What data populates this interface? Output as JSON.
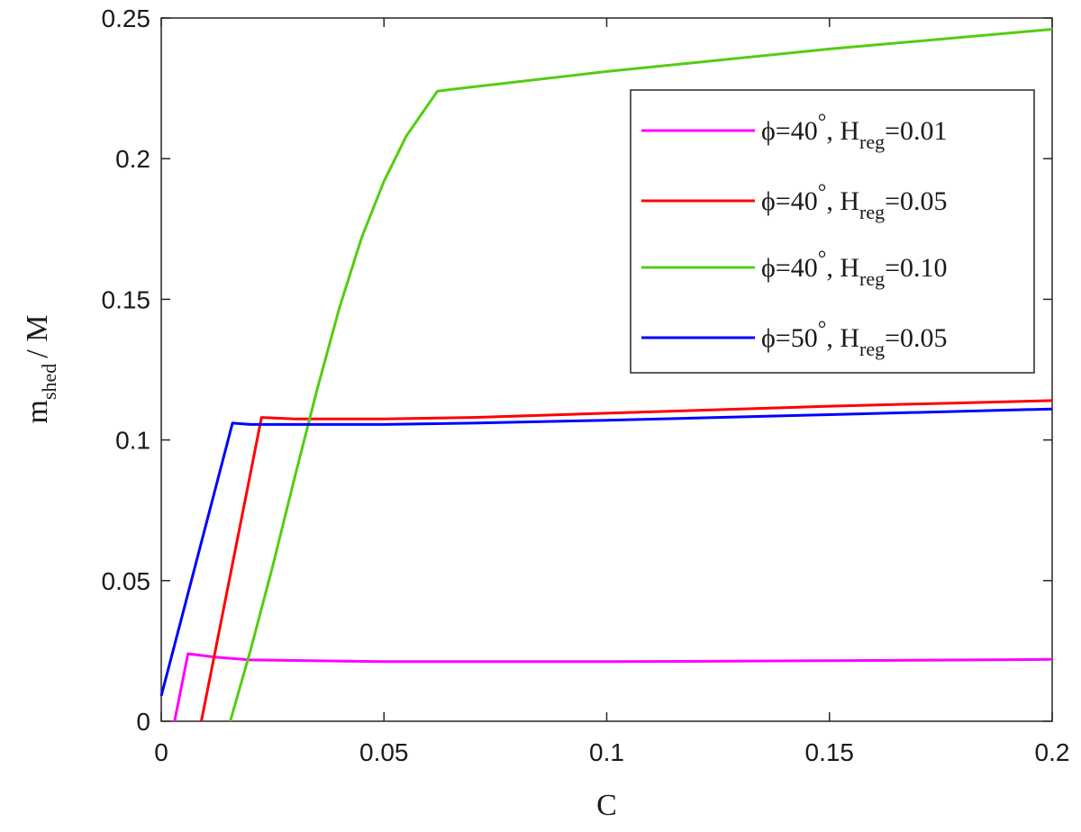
{
  "chart_data": {
    "type": "line",
    "xlabel": "C",
    "ylabel_main": "m",
    "ylabel_sub": "shed",
    "ylabel_tail": "/ M",
    "xlim": [
      0,
      0.2
    ],
    "ylim": [
      0,
      0.25
    ],
    "x_ticks": [
      0,
      0.05,
      0.1,
      0.15,
      0.2
    ],
    "x_tick_labels": [
      "0",
      "0.05",
      "0.1",
      "0.15",
      "0.2"
    ],
    "y_ticks": [
      0,
      0.05,
      0.1,
      0.15,
      0.2,
      0.25
    ],
    "y_tick_labels": [
      "0",
      "0.05",
      "0.1",
      "0.15",
      "0.2",
      "0.25"
    ],
    "grid": false,
    "legend_position": "top-right",
    "series": [
      {
        "legend_phi": "ϕ=40",
        "legend_deg": "°",
        "legend_h": ", H",
        "legend_sub": "reg",
        "legend_val": "=0.01",
        "color": "#ff00ff",
        "points": [
          [
            0.003,
            0.0
          ],
          [
            0.006,
            0.024
          ],
          [
            0.012,
            0.0228
          ],
          [
            0.02,
            0.0218
          ],
          [
            0.05,
            0.0212
          ],
          [
            0.1,
            0.0212
          ],
          [
            0.15,
            0.0215
          ],
          [
            0.2,
            0.022
          ]
        ]
      },
      {
        "legend_phi": "ϕ=40",
        "legend_deg": "°",
        "legend_h": ", H",
        "legend_sub": "reg",
        "legend_val": "=0.05",
        "color": "#ff0000",
        "points": [
          [
            0.009,
            0.0
          ],
          [
            0.0225,
            0.108
          ],
          [
            0.03,
            0.1075
          ],
          [
            0.05,
            0.1075
          ],
          [
            0.07,
            0.108
          ],
          [
            0.1,
            0.1095
          ],
          [
            0.15,
            0.112
          ],
          [
            0.2,
            0.114
          ]
        ]
      },
      {
        "legend_phi": "ϕ=40",
        "legend_deg": "°",
        "legend_h": ", H",
        "legend_sub": "reg",
        "legend_val": "=0.10",
        "color": "#55cc11",
        "points": [
          [
            0.0155,
            0.0
          ],
          [
            0.02,
            0.025
          ],
          [
            0.025,
            0.055
          ],
          [
            0.03,
            0.087
          ],
          [
            0.035,
            0.118
          ],
          [
            0.04,
            0.147
          ],
          [
            0.045,
            0.172
          ],
          [
            0.05,
            0.192
          ],
          [
            0.055,
            0.208
          ],
          [
            0.062,
            0.224
          ],
          [
            0.07,
            0.2255
          ],
          [
            0.1,
            0.231
          ],
          [
            0.15,
            0.239
          ],
          [
            0.2,
            0.246
          ]
        ]
      },
      {
        "legend_phi": "ϕ=50",
        "legend_deg": "°",
        "legend_h": ", H",
        "legend_sub": "reg",
        "legend_val": "=0.05",
        "color": "#0000ff",
        "points": [
          [
            0.0,
            0.009
          ],
          [
            0.016,
            0.106
          ],
          [
            0.02,
            0.1055
          ],
          [
            0.05,
            0.1055
          ],
          [
            0.07,
            0.106
          ],
          [
            0.1,
            0.107
          ],
          [
            0.15,
            0.109
          ],
          [
            0.2,
            0.111
          ]
        ]
      }
    ]
  }
}
